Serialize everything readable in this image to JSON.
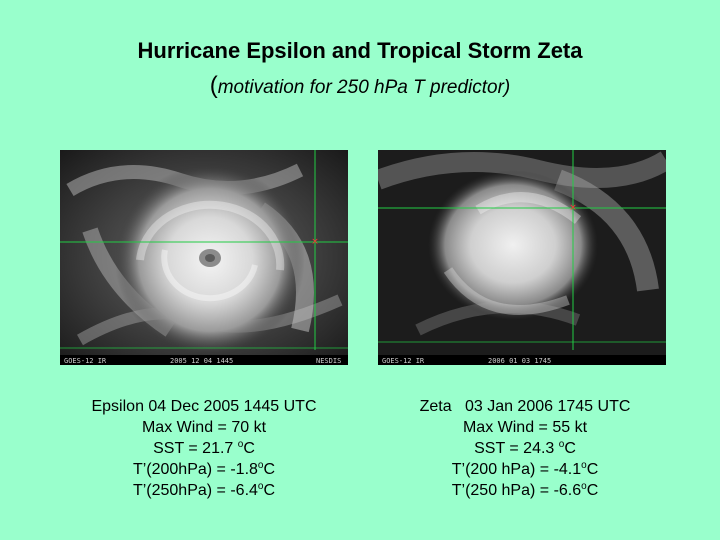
{
  "slide": {
    "title": "Hurricane Epsilon and Tropical Storm Zeta",
    "subtitle_open": "(",
    "subtitle_text": "motivation for 250 hPa T predictor)"
  },
  "images": {
    "left": {
      "footer_left": "GOES-12 IR",
      "footer_right": "2005 12 04 1445",
      "footer_tag": "NESDIS"
    },
    "right": {
      "footer_left": "GOES-12 IR",
      "footer_right": "2006 01 03 1745"
    }
  },
  "captions": {
    "epsilon": {
      "line1": "Epsilon  04 Dec 2005 1445 UTC",
      "line2": "Max Wind = 70 kt",
      "sst_prefix": "SST = 21.7 ",
      "sst_sup": "o",
      "sst_unit": "C",
      "t200_prefix": "T’(200hPa) = -1.8",
      "t200_sup": "o",
      "t200_unit": "C",
      "t250_prefix": "T’(250hPa) = -6.4",
      "t250_sup": "o",
      "t250_unit": "C"
    },
    "zeta": {
      "line1": "Zeta   03 Jan 2006 1745 UTC",
      "line2": "Max Wind = 55 kt",
      "sst_prefix": "SST = 24.3 ",
      "sst_sup": "o",
      "sst_unit": "C",
      "t200_prefix": "T’(200 hPa) = -4.1",
      "t200_sup": "o",
      "t200_unit": "C",
      "t250_prefix": "T’(250 hPa) = -6.6",
      "t250_sup": "o",
      "t250_unit": "C"
    }
  },
  "colors": {
    "background": "#99FFCC",
    "grid": "#22CC44",
    "marker": "#FF3333"
  }
}
